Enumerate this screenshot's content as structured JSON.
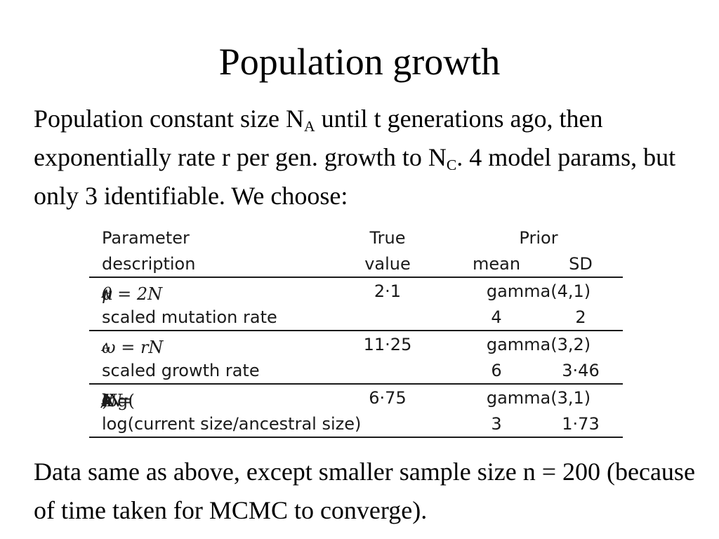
{
  "title": "Population growth",
  "intro": {
    "p1": "Population constant size N",
    "sub1": "A",
    "p2": " until t generations ago, then exponentially rate r per gen. growth to N",
    "sub2": "C",
    "p3": ". 4 model params, but only 3 identifiable. We choose:"
  },
  "table": {
    "header": {
      "param_line1": "Parameter",
      "param_line2": "description",
      "true_line1": "True",
      "true_line2": "value",
      "prior_line1": "Prior",
      "prior_mean": "mean",
      "prior_sd": "SD"
    },
    "rows": [
      {
        "formula_pre": "θ = 2N",
        "formula_sub": "A",
        "formula_post": "μ",
        "description": "scaled mutation rate",
        "true_value": "2·1",
        "prior_dist": "gamma(4,1)",
        "prior_mean": "4",
        "prior_sd": "2"
      },
      {
        "formula_pre": "ω = rN",
        "formula_sub": "A",
        "formula_post": "",
        "description": "scaled growth rate",
        "true_value": "11·25",
        "prior_dist": "gamma(3,2)",
        "prior_mean": "6",
        "prior_sd": "3·46"
      },
      {
        "formula_pre": "κ = ",
        "formula_log": "log(",
        "formula_n1": "N",
        "formula_sub1": "C",
        "formula_slash": "/N",
        "formula_sub2": "A",
        "formula_close": ")",
        "description": "log(current size/ancestral size)",
        "true_value": "6·75",
        "prior_dist": "gamma(3,1)",
        "prior_mean": "3",
        "prior_sd": "1·73"
      }
    ]
  },
  "outro": "Data same as above, except smaller sample size n = 200 (because of time taken for MCMC to converge)."
}
